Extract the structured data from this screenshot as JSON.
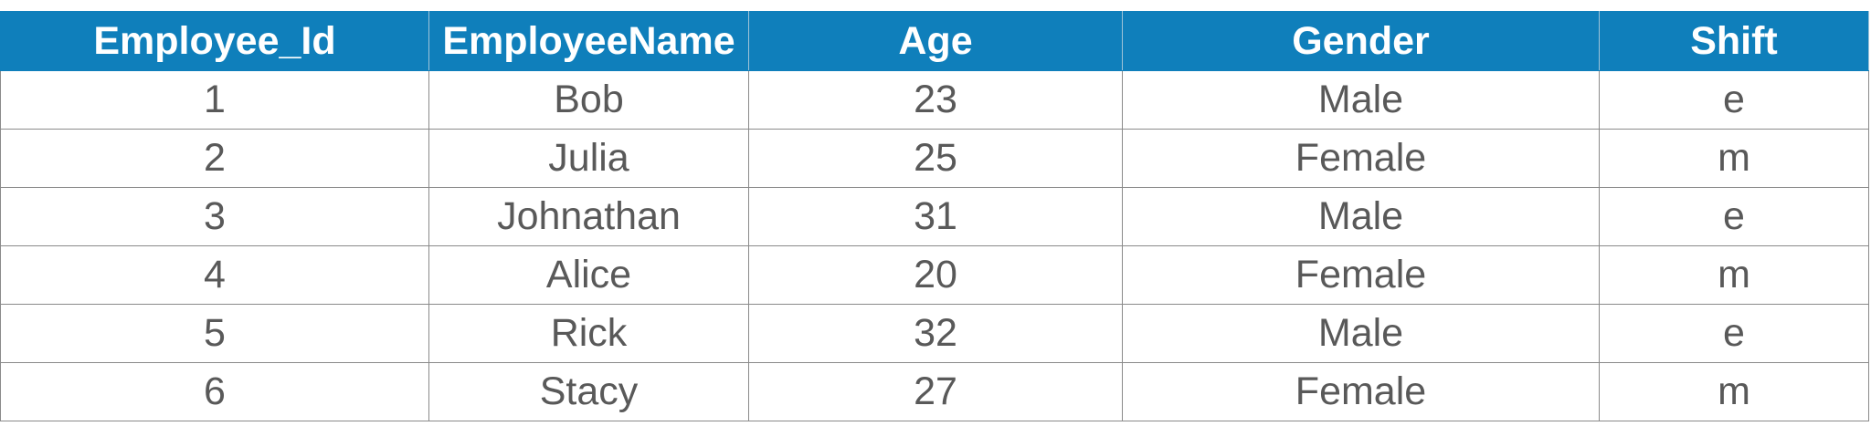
{
  "table": {
    "columns": [
      "Employee_Id",
      "EmployeeName",
      "Age",
      "Gender",
      "Shift"
    ],
    "rows": [
      [
        "1",
        "Bob",
        "23",
        "Male",
        "e"
      ],
      [
        "2",
        "Julia",
        "25",
        "Female",
        "m"
      ],
      [
        "3",
        "Johnathan",
        "31",
        "Male",
        "e"
      ],
      [
        "4",
        "Alice",
        "20",
        "Female",
        "m"
      ],
      [
        "5",
        "Rick",
        "32",
        "Male",
        "e"
      ],
      [
        "6",
        "Stacy",
        "27",
        "Female",
        "m"
      ]
    ]
  },
  "colors": {
    "header_bg": "#0f7fbb",
    "header_text": "#ffffff",
    "cell_text": "#595959",
    "border": "#8a8a8a"
  }
}
